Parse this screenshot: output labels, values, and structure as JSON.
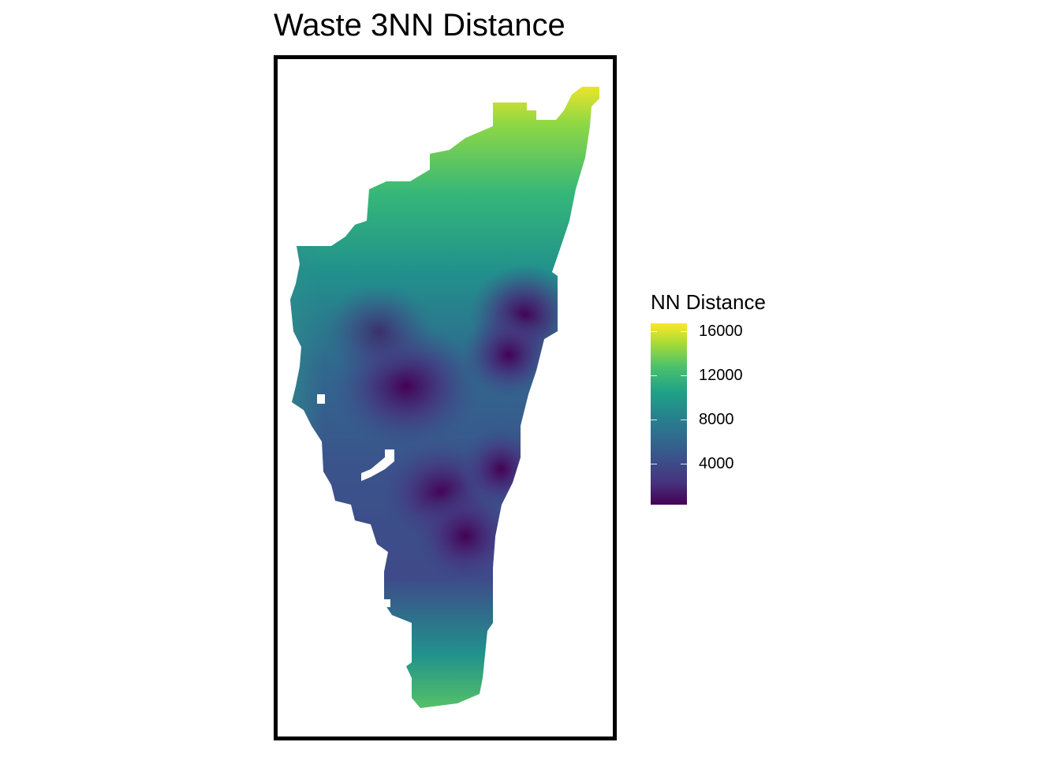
{
  "title": "Waste 3NN Distance",
  "legend": {
    "title": "NN Distance",
    "ticks": [
      {
        "value": 16000,
        "label": "16000"
      },
      {
        "value": 12000,
        "label": "12000"
      },
      {
        "value": 8000,
        "label": "8000"
      },
      {
        "value": 4000,
        "label": "4000"
      }
    ],
    "range": [
      1000,
      17500
    ],
    "palette": "viridis",
    "placement": "right"
  },
  "map": {
    "description_type": "raster",
    "colors": {
      "low": "#440154",
      "mid_low": "#3b528b",
      "mid": "#21918c",
      "mid_high": "#5ec962",
      "high": "#fde725",
      "frame": "#000000"
    }
  }
}
